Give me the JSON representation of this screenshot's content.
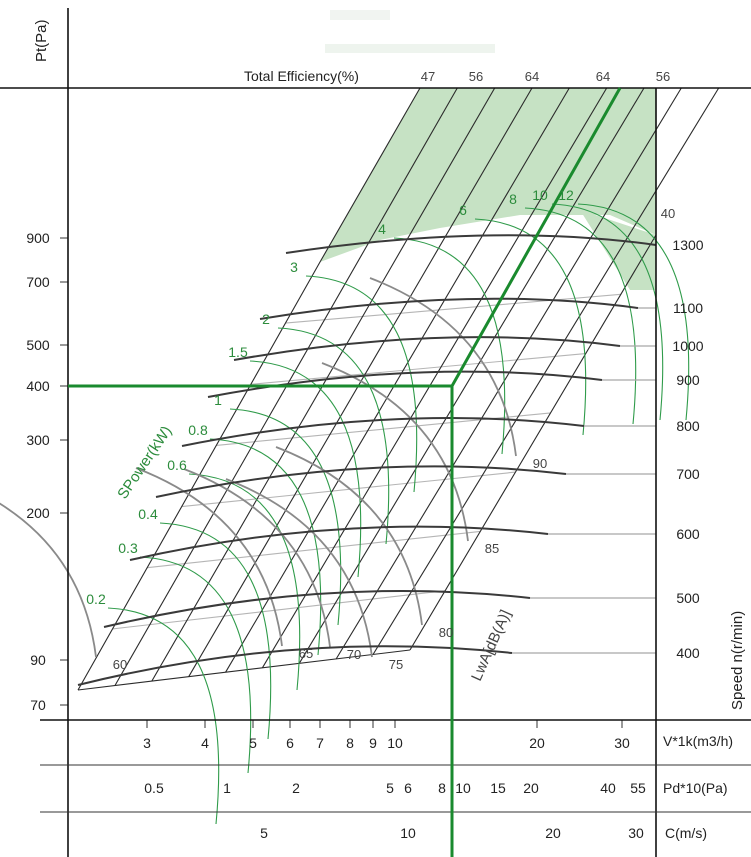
{
  "chart_data": {
    "type": "fan-selection-chart",
    "y_axis": {
      "label": "Pt(Pa)",
      "scale": "log",
      "ticks": [
        70,
        90,
        200,
        300,
        400,
        500,
        700,
        900
      ]
    },
    "top_axis": {
      "label": "Total Efficiency(%)",
      "ticks": [
        "47",
        "56",
        "64",
        "64",
        "56"
      ]
    },
    "flow_axis": {
      "label": "V*1k(m3/h)",
      "ticks": [
        "3",
        "4",
        "5",
        "6",
        "7",
        "8",
        "9",
        "10",
        "20",
        "30"
      ]
    },
    "dynamic_pressure_axis": {
      "label": "Pd*10(Pa)",
      "ticks": [
        "0.5",
        "1",
        "2",
        "5",
        "6",
        "8",
        "10",
        "15",
        "20",
        "40",
        "55"
      ]
    },
    "velocity_axis": {
      "label": "C(m/s)",
      "ticks": [
        "5",
        "10",
        "20",
        "30"
      ]
    },
    "power": {
      "label": "SPower(kW)",
      "values": [
        "0.2",
        "0.3",
        "0.4",
        "0.6",
        "0.8",
        "1",
        "1.5",
        "2",
        "3",
        "4",
        "6",
        "8",
        "10",
        "12"
      ]
    },
    "speed": {
      "label": "Speed n(r/min)",
      "values": [
        "400",
        "500",
        "600",
        "700",
        "800",
        "900",
        "1000",
        "1100",
        "1300"
      ]
    },
    "noise": {
      "label": "LwA[dB(A)]",
      "values": [
        "60",
        "65",
        "70",
        "75",
        "80",
        "85",
        "90",
        "40"
      ]
    },
    "operating_point": {
      "pressure_pa": 400,
      "flow_thousand_m3h": 12
    }
  }
}
